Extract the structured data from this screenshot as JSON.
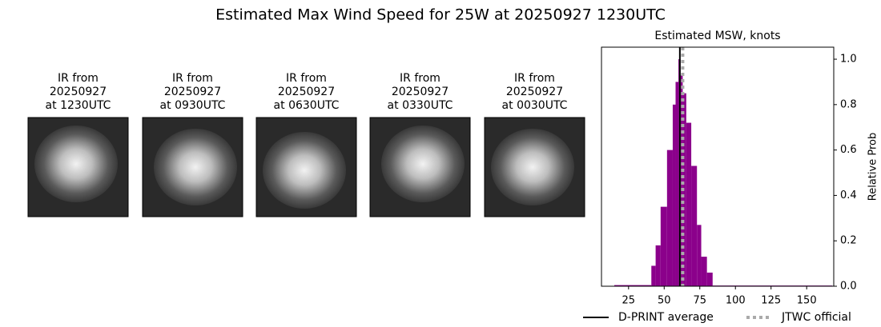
{
  "title": "Estimated Max Wind Speed for 25W at 20250927 1230UTC",
  "panels": [
    {
      "lines": [
        "IR from",
        "20250927",
        "at 1230UTC"
      ]
    },
    {
      "lines": [
        "IR from",
        "20250927",
        "at 0930UTC"
      ]
    },
    {
      "lines": [
        "IR from",
        "20250927",
        "at 0630UTC"
      ]
    },
    {
      "lines": [
        "IR from",
        "20250927",
        "at 0330UTC"
      ]
    },
    {
      "lines": [
        "IR from",
        "20250927",
        "at 0030UTC"
      ]
    }
  ],
  "chart_data": {
    "type": "histogram",
    "title": "Estimated MSW, knots",
    "ylabel": "Relative Prob",
    "color": "#8b008b",
    "bins": [
      15,
      41,
      44,
      47.5,
      52,
      56,
      58,
      60,
      61.5,
      63,
      65.5,
      69,
      73,
      76,
      80,
      84,
      168
    ],
    "values": [
      0.005,
      0.09,
      0.18,
      0.35,
      0.6,
      0.8,
      0.9,
      1.0,
      0.93,
      0.85,
      0.72,
      0.53,
      0.27,
      0.13,
      0.06,
      0.003
    ],
    "xlim": [
      6,
      169
    ],
    "ylim": [
      0,
      1.053
    ],
    "xticks": [
      25,
      50,
      75,
      100,
      125,
      150
    ],
    "yticks": [
      {
        "value": 0,
        "label": "0.0"
      },
      {
        "value": 0.2,
        "label": "0.2"
      },
      {
        "value": 0.4,
        "label": "0.4"
      },
      {
        "value": 0.6,
        "label": "0.6"
      },
      {
        "value": 0.8,
        "label": "0.8"
      },
      {
        "value": 1.0,
        "label": "1.0"
      }
    ],
    "vlines": [
      {
        "name": "D-PRINT average",
        "x": 61,
        "color": "#000000",
        "style": "solid"
      },
      {
        "name": "JTWC official",
        "x": 63,
        "color": "#aaaaaa",
        "style": "dotted"
      }
    ],
    "legend": "bottom"
  }
}
